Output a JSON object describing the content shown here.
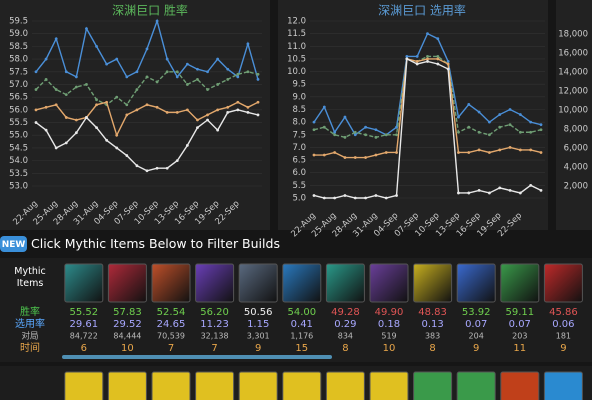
{
  "chart_data": [
    {
      "type": "line",
      "title": "深渊巨口 胜率",
      "categories": [
        "22-Aug",
        null,
        "25-Aug",
        null,
        "28-Aug",
        null,
        "31-Aug",
        null,
        "04-Sep",
        null,
        "07-Sep",
        null,
        "10-Sep",
        null,
        "13-Sep",
        null,
        "16-Sep",
        null,
        "19-Sep",
        null,
        "22-Sep",
        null,
        null
      ],
      "series": [
        {
          "color": "#4a8fd8",
          "values": [
            57.5,
            58.0,
            58.8,
            57.5,
            57.3,
            59.2,
            58.5,
            57.8,
            58.0,
            57.3,
            57.5,
            58.4,
            59.5,
            58.0,
            57.3,
            57.8,
            57.6,
            57.5,
            58.0,
            57.6,
            57.3,
            58.6,
            57.2
          ]
        },
        {
          "color": "#6f9e74",
          "dashed": true,
          "values": [
            56.8,
            57.2,
            56.8,
            56.6,
            56.9,
            57.0,
            56.4,
            56.2,
            56.5,
            56.2,
            56.8,
            57.3,
            57.1,
            57.5,
            57.5,
            57.0,
            57.2,
            56.8,
            57.0,
            57.2,
            57.4,
            57.5,
            57.4
          ]
        },
        {
          "color": "#e3a86c",
          "values": [
            56.0,
            56.1,
            56.2,
            55.7,
            55.6,
            55.7,
            56.2,
            56.3,
            55.0,
            55.8,
            56.0,
            56.2,
            56.1,
            55.9,
            55.9,
            56.0,
            55.6,
            55.8,
            56.0,
            56.1,
            56.3,
            56.1,
            56.3
          ]
        },
        {
          "color": "#e8e8e8",
          "values": [
            55.5,
            55.2,
            54.5,
            54.7,
            55.1,
            55.7,
            55.3,
            54.8,
            54.5,
            54.2,
            53.8,
            53.6,
            53.7,
            53.7,
            54.0,
            54.6,
            55.3,
            55.6,
            55.2,
            55.9,
            56.0,
            55.9,
            55.8
          ]
        }
      ],
      "ylim": [
        53,
        59.5
      ],
      "yticks": [
        {
          "value": 53,
          "label": "53.0"
        },
        {
          "value": 53.5,
          "label": "53.5"
        },
        {
          "value": 54,
          "label": "54.0"
        },
        {
          "value": 54.5,
          "label": "54.5"
        },
        {
          "value": 55,
          "label": "55.0"
        },
        {
          "value": 55.5,
          "label": "55.5"
        },
        {
          "value": 56,
          "label": "56.0"
        },
        {
          "value": 56.5,
          "label": "56.5"
        },
        {
          "value": 57,
          "label": "57.0"
        },
        {
          "value": 57.5,
          "label": "57.5"
        },
        {
          "value": 58,
          "label": "58.0"
        },
        {
          "value": 58.5,
          "label": "58.5"
        },
        {
          "value": 59,
          "label": "59.0"
        },
        {
          "value": 59.5,
          "label": "59.5"
        }
      ],
      "grid": true,
      "title_color": "#5cb85c"
    },
    {
      "type": "line",
      "title": "深渊巨口 选用率",
      "categories": [
        "22-Aug",
        null,
        "25-Aug",
        null,
        "28-Aug",
        null,
        "31-Aug",
        null,
        "04-Sep",
        null,
        "07-Sep",
        null,
        "10-Sep",
        null,
        "13-Sep",
        null,
        "16-Sep",
        null,
        "19-Sep",
        null,
        "22-Sep",
        null,
        null
      ],
      "series": [
        {
          "color": "#4a8fd8",
          "values": [
            8.0,
            8.6,
            7.6,
            8.2,
            7.5,
            7.8,
            7.7,
            7.5,
            7.8,
            10.6,
            10.6,
            11.5,
            11.3,
            10.4,
            8.2,
            8.7,
            8.4,
            8.0,
            8.3,
            8.5,
            8.3,
            8.0,
            7.9
          ]
        },
        {
          "color": "#6f9e74",
          "dashed": true,
          "values": [
            7.7,
            7.8,
            7.5,
            7.4,
            7.6,
            7.5,
            7.4,
            7.5,
            7.5,
            10.5,
            10.4,
            10.6,
            10.6,
            10.3,
            7.6,
            7.8,
            7.6,
            7.5,
            7.8,
            7.9,
            7.6,
            7.6,
            7.7
          ]
        },
        {
          "color": "#e3a86c",
          "values": [
            6.7,
            6.7,
            6.8,
            6.6,
            6.6,
            6.6,
            6.7,
            6.8,
            6.8,
            10.5,
            10.4,
            10.5,
            10.5,
            10.3,
            6.8,
            6.8,
            6.9,
            6.8,
            6.9,
            7.0,
            6.9,
            6.9,
            6.8
          ]
        },
        {
          "color": "#e8e8e8",
          "values": [
            5.1,
            5.0,
            5.0,
            5.1,
            5.0,
            5.0,
            5.1,
            5.0,
            5.1,
            10.5,
            10.3,
            10.4,
            10.3,
            10.1,
            5.2,
            5.2,
            5.3,
            5.2,
            5.4,
            5.3,
            5.2,
            5.5,
            5.3
          ]
        }
      ],
      "ylim": [
        5,
        12
      ],
      "yticks": [
        {
          "value": 5,
          "label": "5.0"
        },
        5.5,
        {
          "value": 6,
          "label": "6.0"
        },
        6.5,
        {
          "value": 7,
          "label": "7.0"
        },
        7.5,
        {
          "value": 8,
          "label": "8.0"
        },
        8.5,
        {
          "value": 9,
          "label": "9.0"
        },
        9.5,
        {
          "value": 10,
          "label": "10.0"
        },
        10.5,
        {
          "value": 11,
          "label": "11.0"
        },
        11.5,
        {
          "value": 12,
          "label": "12.0"
        }
      ],
      "grid": true,
      "title_color": "#5b9bd5"
    },
    {
      "type": "line",
      "ylim": [
        0,
        20000
      ],
      "yticks": [
        {
          "value": 2000,
          "label": "2,000"
        },
        {
          "value": 4000,
          "label": "4,000"
        },
        {
          "value": 6000,
          "label": "6,000"
        },
        {
          "value": 8000,
          "label": "8,000"
        },
        {
          "value": 10000,
          "label": "10,000"
        },
        {
          "value": 12000,
          "label": "12,000"
        },
        {
          "value": 14000,
          "label": "14,000"
        },
        {
          "value": 16000,
          "label": "16,000"
        },
        {
          "value": 18000,
          "label": "18,000"
        }
      ],
      "grid": false
    }
  ],
  "header": {
    "badge": "NEW",
    "title": "Click Mythic Items Below to Filter Builds"
  },
  "table": {
    "row_labels": [
      "Mythic Items",
      "胜率",
      "选用率",
      "对局",
      "时间"
    ],
    "win": [
      "55.52",
      "57.83",
      "52.54",
      "56.20",
      "50.56",
      "54.00",
      "49.28",
      "49.90",
      "48.83",
      "53.92",
      "59.11",
      "45.86"
    ],
    "pick": [
      "29.61",
      "29.52",
      "24.65",
      "11.23",
      "1.15",
      "0.41",
      "0.29",
      "0.18",
      "0.13",
      "0.07",
      "0.07",
      "0.06"
    ],
    "games": [
      "84,722",
      "84,444",
      "70,539",
      "32,138",
      "3,301",
      "1,176",
      "834",
      "519",
      "383",
      "204",
      "203",
      "181"
    ],
    "time": [
      "6",
      "10",
      "7",
      "7",
      "9",
      "15",
      "8",
      "10",
      "8",
      "9",
      "11",
      "9"
    ]
  }
}
